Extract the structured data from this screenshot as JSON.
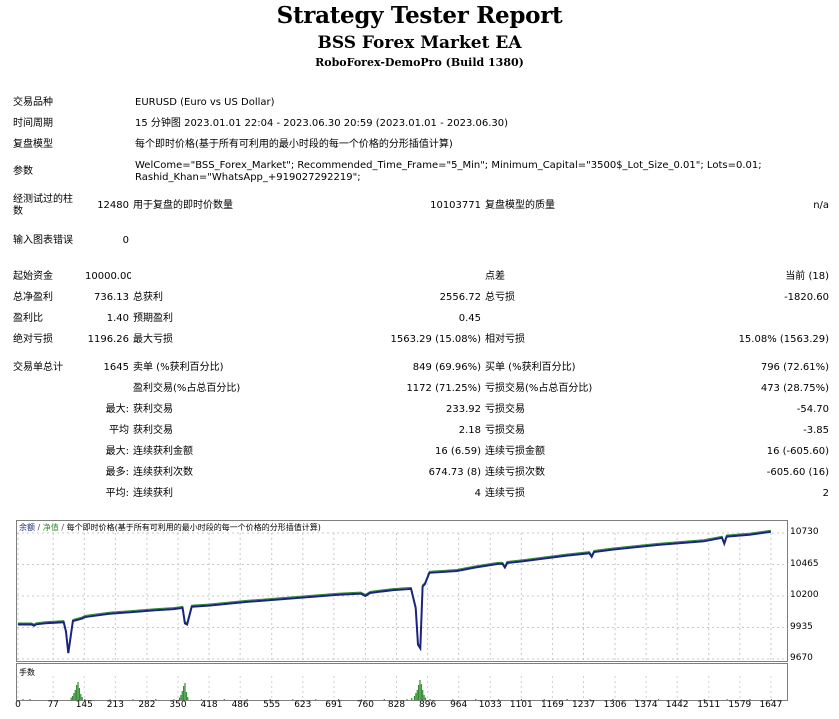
{
  "header": {
    "title": "Strategy Tester Report",
    "ea_name": "BSS Forex Market EA",
    "server": "RoboForex-DemoPro (Build 1380)"
  },
  "info": {
    "symbol_label": "交易品种",
    "symbol_value": "EURUSD (Euro vs US Dollar)",
    "period_label": "时间周期",
    "period_value": "15 分钟图 2023.01.01 22:04 - 2023.06.30 20:59 (2023.01.01 - 2023.06.30)",
    "model_label": "复盘模型",
    "model_value": "每个即时价格(基于所有可利用的最小时段的每一个价格的分形插值计算)",
    "params_label": "参数",
    "params_value": "WelCome=\"BSS_Forex_Market\"; Recommended_Time_Frame=\"5_Min\"; Minimum_Capital=\"3500$_Lot_Size_0.01\"; Lots=0.01; Rashid_Khan=\"WhatsApp_+919027292219\";"
  },
  "test": {
    "bars_label": "经测试过的柱数",
    "bars_value": "12480",
    "ticks_label": "用于复盘的即时价数量",
    "ticks_value": "10103771",
    "quality_label": "复盘模型的质量",
    "quality_value": "n/a",
    "errors_label": "输入图表错误",
    "errors_value": "0"
  },
  "stats": {
    "deposit_label": "起始资金",
    "deposit_value": "10000.00",
    "spread_label": "点差",
    "spread_value": "当前 (18)",
    "netprofit_label": "总净盈利",
    "netprofit_value": "736.13",
    "grossprofit_label": "总获利",
    "grossprofit_value": "2556.72",
    "grossloss_label": "总亏损",
    "grossloss_value": "-1820.60",
    "pf_label": "盈利比",
    "pf_value": "1.40",
    "expected_label": "预期盈利",
    "expected_value": "0.45",
    "absdd_label": "绝对亏损",
    "absdd_value": "1196.26",
    "maxdd_label": "最大亏损",
    "maxdd_value": "1563.29 (15.08%)",
    "reldd_label": "相对亏损",
    "reldd_value": "15.08% (1563.29)",
    "trades_label": "交易单总计",
    "trades_value": "1645",
    "short_label": "卖单 (%获利百分比)",
    "short_value": "849 (69.96%)",
    "long_label": "买单 (%获利百分比)",
    "long_value": "796 (72.61%)",
    "profit_trades_label": "盈利交易(%占总百分比)",
    "profit_trades_value": "1172 (71.25%)",
    "loss_trades_label": "亏损交易(%占总百分比)",
    "loss_trades_value": "473 (28.75%)",
    "max_label": "最大:",
    "max_profit_label": "获利交易",
    "max_profit_value": "233.92",
    "max_loss_label": "亏损交易",
    "max_loss_value": "-54.70",
    "avg_label": "平均",
    "avg_profit_label": "获利交易",
    "avg_profit_value": "2.18",
    "avg_loss_label": "亏损交易",
    "avg_loss_value": "-3.85",
    "maxcons_label": "最大:",
    "maxcons_wins_label": "连续获利金额",
    "maxcons_wins_value": "16 (6.59)",
    "maxcons_losses_label": "连续亏损金额",
    "maxcons_losses_value": "16 (-605.60)",
    "maxamt_label": "最多:",
    "maxamt_profit_label": "连续获利次数",
    "maxamt_profit_value": "674.73 (8)",
    "maxamt_loss_label": "连续亏损次数",
    "maxamt_loss_value": "-605.60 (16)",
    "avgcons_label": "平均:",
    "avgcons_wins_label": "连续获利",
    "avgcons_wins_value": "4",
    "avgcons_losses_label": "连续亏损",
    "avgcons_losses_value": "2"
  },
  "chart_legend": {
    "balance": "余额",
    "sep": "/",
    "equity": "净值",
    "model": "每个即时价格(基于所有可利用的最小时段的每一个价格的分形插值计算)"
  },
  "volume_title": "手数",
  "chart_data": {
    "type": "line",
    "colors": {
      "balance": "#1a237e",
      "equity": "#2e8b2e",
      "volume": "#2e8b2e"
    },
    "yticks": [
      "10730",
      "10465",
      "10200",
      "9935",
      "9670"
    ],
    "xticks": [
      "0",
      "77",
      "145",
      "213",
      "282",
      "350",
      "418",
      "486",
      "555",
      "623",
      "691",
      "760",
      "828",
      "896",
      "964",
      "1033",
      "1101",
      "1169",
      "1237",
      "1306",
      "1374",
      "1442",
      "1511",
      "1579",
      "1647"
    ],
    "ylim": [
      9670,
      10730
    ],
    "xlim": [
      0,
      1680
    ],
    "series": [
      {
        "x": [
          0,
          30,
          35,
          40,
          60,
          100,
          105,
          110,
          120,
          140,
          145,
          150,
          200,
          300,
          340,
          360,
          365,
          370,
          380,
          420,
          500,
          600,
          700,
          750,
          760,
          770,
          790,
          820,
          860,
          870,
          875,
          880,
          885,
          890,
          900,
          960,
          1000,
          1050,
          1060,
          1065,
          1070,
          1100,
          1200,
          1250,
          1255,
          1260,
          1300,
          1400,
          1500,
          1540,
          1545,
          1550,
          1600,
          1647
        ],
        "values": [
          9960,
          9960,
          9950,
          9962,
          9970,
          9980,
          9900,
          9720,
          9990,
          10010,
          10020,
          10025,
          10050,
          10080,
          10090,
          10100,
          9970,
          9960,
          10110,
          10120,
          10150,
          10180,
          10210,
          10220,
          10200,
          10225,
          10235,
          10250,
          10260,
          10100,
          9790,
          9760,
          10280,
          10300,
          10395,
          10410,
          10440,
          10470,
          10470,
          10440,
          10478,
          10490,
          10540,
          10560,
          10530,
          10570,
          10590,
          10630,
          10660,
          10690,
          10640,
          10700,
          10715,
          10740
        ]
      }
    ],
    "volume": {
      "x": [
        10,
        25,
        115,
        118,
        121,
        124,
        127,
        130,
        133,
        136,
        139,
        145,
        200,
        250,
        300,
        340,
        352,
        355,
        358,
        361,
        364,
        367,
        370,
        400,
        450,
        500,
        550,
        600,
        650,
        700,
        750,
        800,
        850,
        860,
        866,
        869,
        872,
        875,
        878,
        881,
        884,
        887,
        890,
        900,
        950,
        1000,
        1050,
        1100,
        1150,
        1200,
        1250,
        1300,
        1350,
        1400,
        1450,
        1500,
        1550,
        1600,
        1647
      ],
      "values": [
        0.04,
        0.05,
        0.12,
        0.2,
        0.35,
        0.5,
        0.75,
        0.9,
        0.6,
        0.3,
        0.15,
        0.05,
        0.04,
        0.04,
        0.05,
        0.04,
        0.12,
        0.25,
        0.45,
        0.7,
        0.85,
        0.4,
        0.15,
        0.04,
        0.05,
        0.04,
        0.05,
        0.04,
        0.04,
        0.05,
        0.04,
        0.05,
        0.04,
        0.1,
        0.2,
        0.35,
        0.5,
        0.75,
        1.0,
        0.8,
        0.5,
        0.25,
        0.12,
        0.05,
        0.04,
        0.05,
        0.04,
        0.05,
        0.04,
        0.05,
        0.04,
        0.05,
        0.04,
        0.05,
        0.04,
        0.05,
        0.04,
        0.05,
        0.04
      ]
    }
  }
}
